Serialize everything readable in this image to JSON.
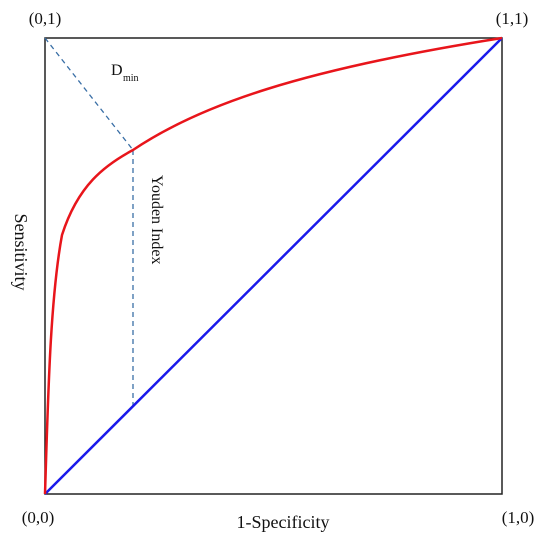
{
  "corners": {
    "top_left": "(0,1)",
    "top_right": "(1,1)",
    "bottom_left": "(0,0)",
    "bottom_right": "(1,0)"
  },
  "axes": {
    "xlabel": "1-Specificity",
    "ylabel": "Sensitivity"
  },
  "annotations": {
    "dmin_main": "D",
    "dmin_sub": "min",
    "youden": "Youden Index"
  },
  "colors": {
    "roc_curve": "#e8151b",
    "diagonal": "#1a1aeb",
    "dashed": "#3a6fa6",
    "frame": "#222222"
  }
}
